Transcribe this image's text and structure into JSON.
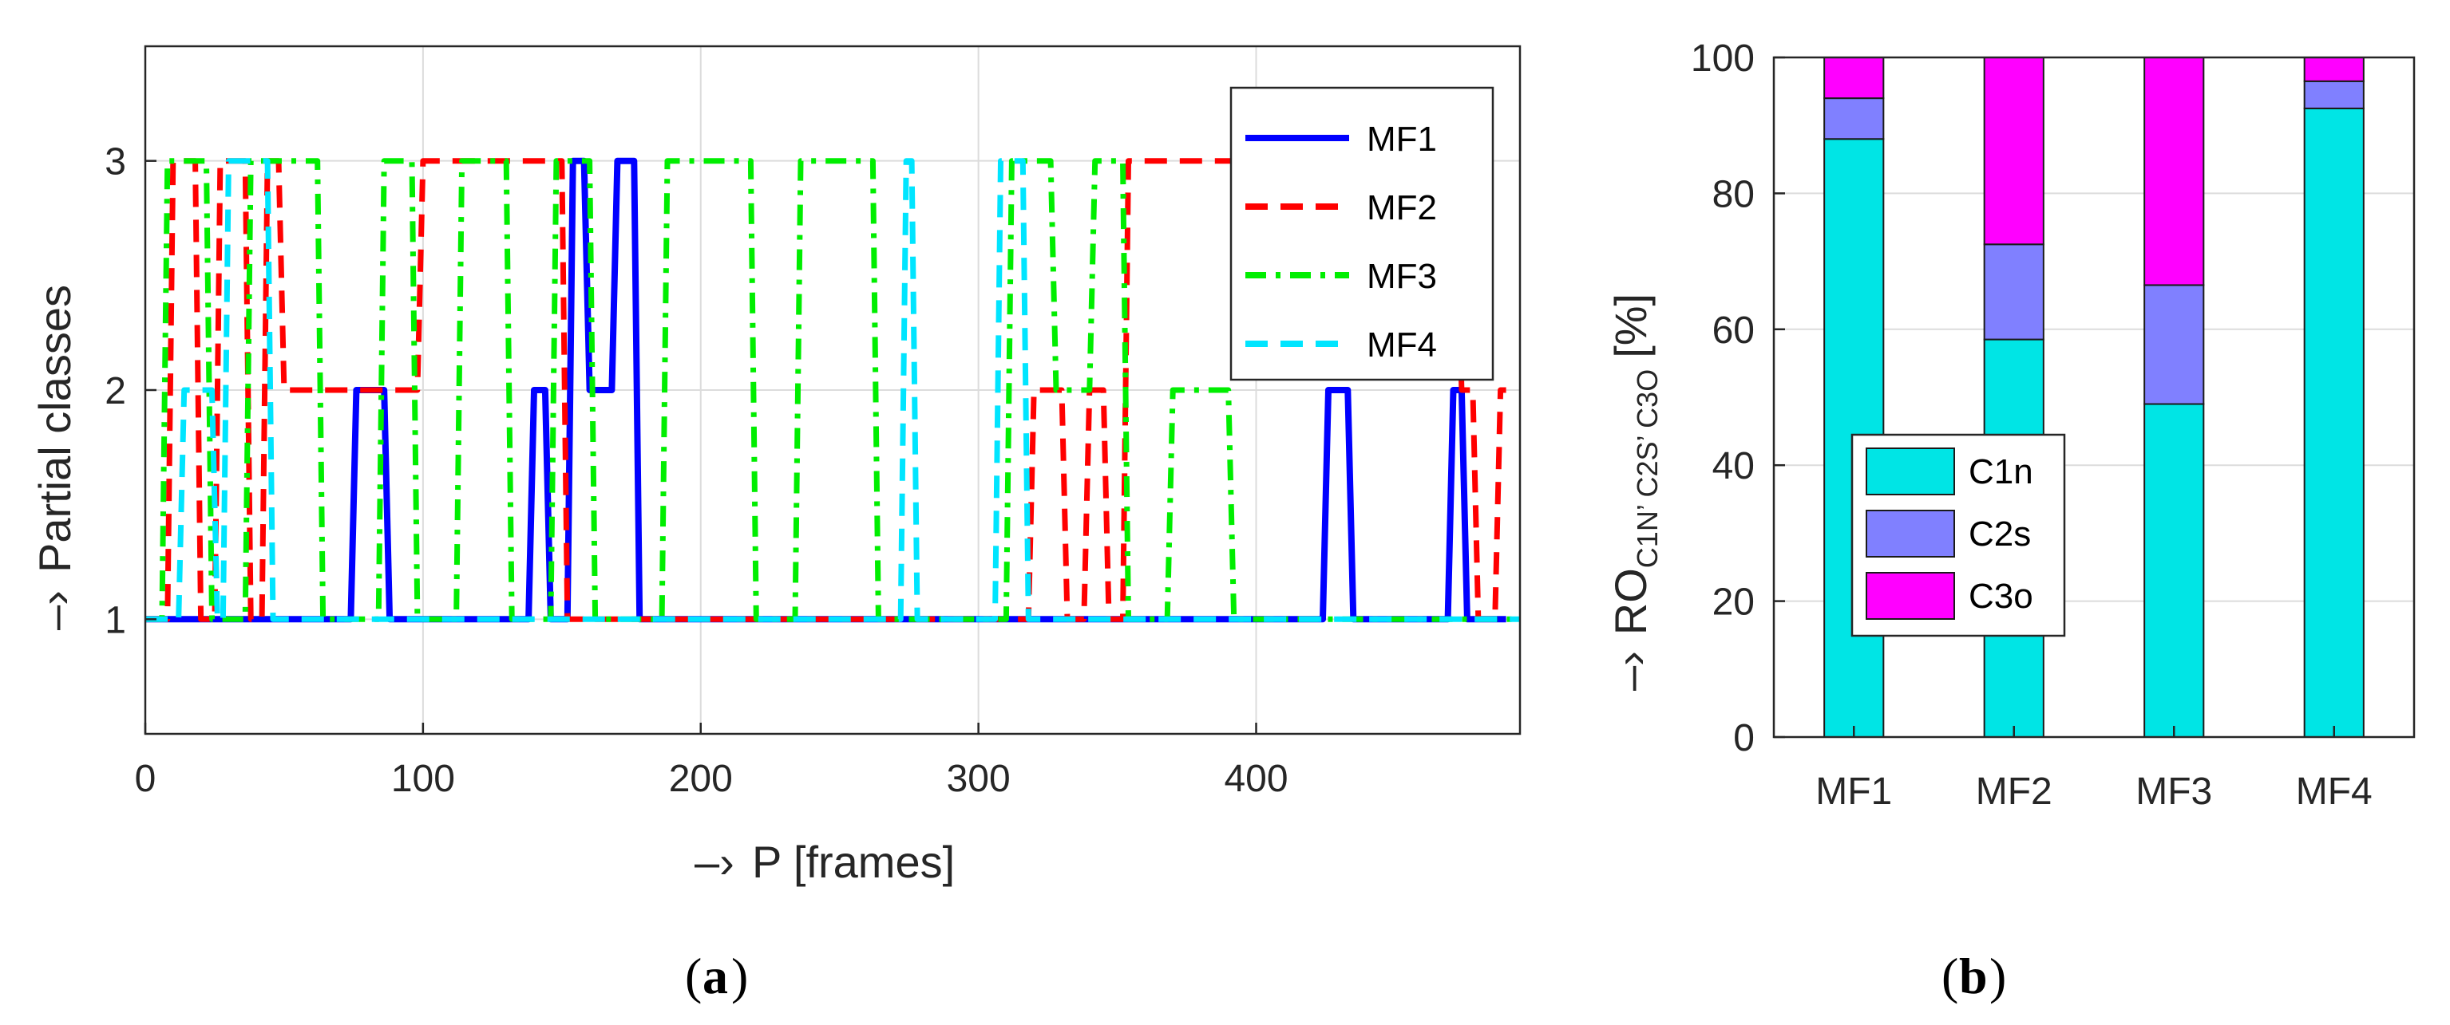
{
  "chart_data": [
    {
      "id": "a",
      "type": "line",
      "caption_letter": "a",
      "xlabel_arrow": "–›",
      "xlabel": "P [frames]",
      "ylabel_arrow": "–›",
      "ylabel": "Partial classes",
      "xlim": [
        0,
        495
      ],
      "ylim": [
        0.5,
        3.5
      ],
      "xticks": [
        0,
        100,
        200,
        300,
        400
      ],
      "yticks": [
        1,
        2,
        3
      ],
      "grid": true,
      "legend_position": "top-right",
      "series": [
        {
          "name": "MF1",
          "color": "#0000ff",
          "dash": "solid",
          "x": [
            0,
            74,
            76,
            86,
            88,
            138,
            140,
            144,
            146,
            152,
            154,
            158,
            160,
            168,
            170,
            176,
            178,
            424,
            426,
            433,
            435,
            469,
            471,
            474,
            476,
            490
          ],
          "y": [
            1,
            1,
            2,
            2,
            1,
            1,
            2,
            2,
            1,
            1,
            3,
            3,
            2,
            2,
            3,
            3,
            1,
            1,
            2,
            2,
            1,
            1,
            2,
            2,
            1,
            1
          ]
        },
        {
          "name": "MF2",
          "color": "#ff0000",
          "dash": "dashed",
          "x": [
            0,
            8,
            10,
            18,
            20,
            25,
            27,
            36,
            38,
            42,
            44,
            48,
            50,
            98,
            100,
            150,
            152,
            178,
            180,
            262,
            264,
            318,
            320,
            330,
            332,
            338,
            340,
            345,
            347,
            352,
            354,
            472,
            474,
            478,
            480,
            486,
            488,
            490
          ],
          "y": [
            1,
            1,
            3,
            3,
            1,
            1,
            3,
            3,
            1,
            1,
            3,
            3,
            2,
            2,
            3,
            3,
            1,
            1,
            1,
            1,
            1,
            1,
            2,
            2,
            1,
            1,
            2,
            2,
            1,
            1,
            3,
            3,
            2,
            2,
            1,
            1,
            2,
            2
          ]
        },
        {
          "name": "MF3",
          "color": "#00ee00",
          "dash": "dashdot",
          "x": [
            0,
            6,
            8,
            22,
            24,
            36,
            38,
            62,
            64,
            84,
            86,
            96,
            98,
            112,
            114,
            130,
            132,
            146,
            148,
            160,
            162,
            186,
            188,
            218,
            220,
            234,
            236,
            262,
            264,
            310,
            312,
            326,
            328,
            340,
            342,
            352,
            354,
            368,
            370,
            390,
            392,
            495
          ],
          "y": [
            1,
            1,
            3,
            3,
            1,
            1,
            3,
            3,
            1,
            1,
            3,
            3,
            1,
            1,
            3,
            3,
            1,
            1,
            3,
            3,
            1,
            1,
            3,
            3,
            1,
            1,
            3,
            3,
            1,
            1,
            3,
            3,
            2,
            2,
            3,
            3,
            1,
            1,
            2,
            2,
            1,
            1
          ]
        },
        {
          "name": "MF4",
          "color": "#00e5ff",
          "dash": "dashed",
          "x": [
            0,
            12,
            14,
            24,
            26,
            28,
            30,
            44,
            46,
            150,
            152,
            200,
            202,
            272,
            274,
            276,
            278,
            306,
            308,
            316,
            318,
            495
          ],
          "y": [
            1,
            1,
            2,
            2,
            1,
            1,
            3,
            3,
            1,
            1,
            1,
            1,
            1,
            1,
            3,
            3,
            1,
            1,
            3,
            3,
            1,
            1
          ]
        }
      ]
    },
    {
      "id": "b",
      "type": "bar",
      "stacked": true,
      "caption_letter": "b",
      "ylabel_arrow": "–›",
      "ylabel_main": "RO",
      "ylabel_sub": "C1N’ C2S’ C3O",
      "ylabel_unit": "[%]",
      "categories": [
        "MF1",
        "MF2",
        "MF3",
        "MF4"
      ],
      "ylim": [
        0,
        100
      ],
      "yticks": [
        0,
        20,
        40,
        60,
        80,
        100
      ],
      "grid": true,
      "legend_position": "bottom-left",
      "series": [
        {
          "name": "C1n",
          "color": "#00e5e5",
          "values": [
            88,
            58.5,
            49,
            92.5
          ]
        },
        {
          "name": "C2s",
          "color": "#8080ff",
          "values": [
            6,
            14,
            17.5,
            4
          ]
        },
        {
          "name": "C3o",
          "color": "#ff00ff",
          "values": [
            6,
            27.5,
            33.5,
            3.5
          ]
        }
      ]
    }
  ]
}
